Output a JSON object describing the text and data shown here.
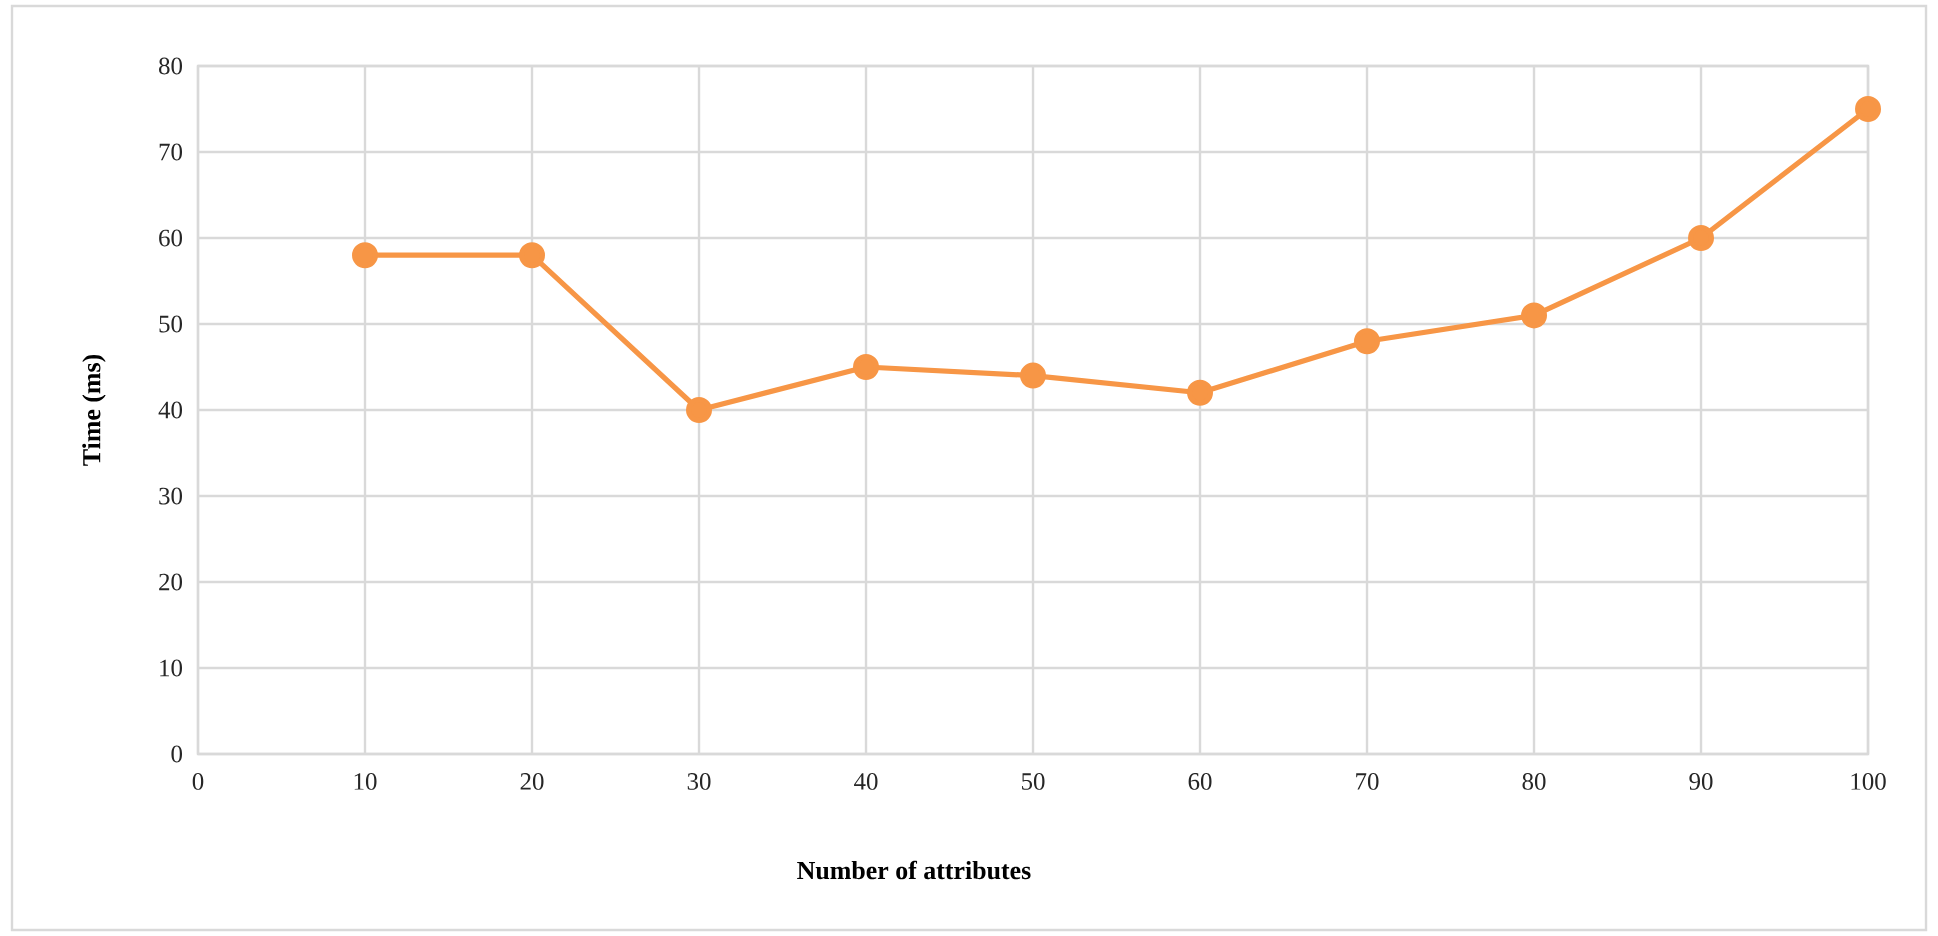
{
  "chart_data": {
    "type": "line",
    "xlabel": "Number of attributes",
    "ylabel": "Time (ms)",
    "x": [
      10,
      20,
      30,
      40,
      50,
      60,
      70,
      80,
      90,
      100
    ],
    "series": [
      {
        "color": "#f79646",
        "values": [
          58,
          58,
          40,
          45,
          44,
          42,
          48,
          51,
          60,
          75
        ]
      }
    ],
    "xlim": [
      0,
      100
    ],
    "ylim": [
      0,
      80
    ],
    "xticks": [
      0,
      10,
      20,
      30,
      40,
      50,
      60,
      70,
      80,
      90,
      100
    ],
    "yticks": [
      0,
      10,
      20,
      30,
      40,
      50,
      60,
      70,
      80
    ],
    "grid": true,
    "marker": "circle",
    "line_style": "solid"
  }
}
